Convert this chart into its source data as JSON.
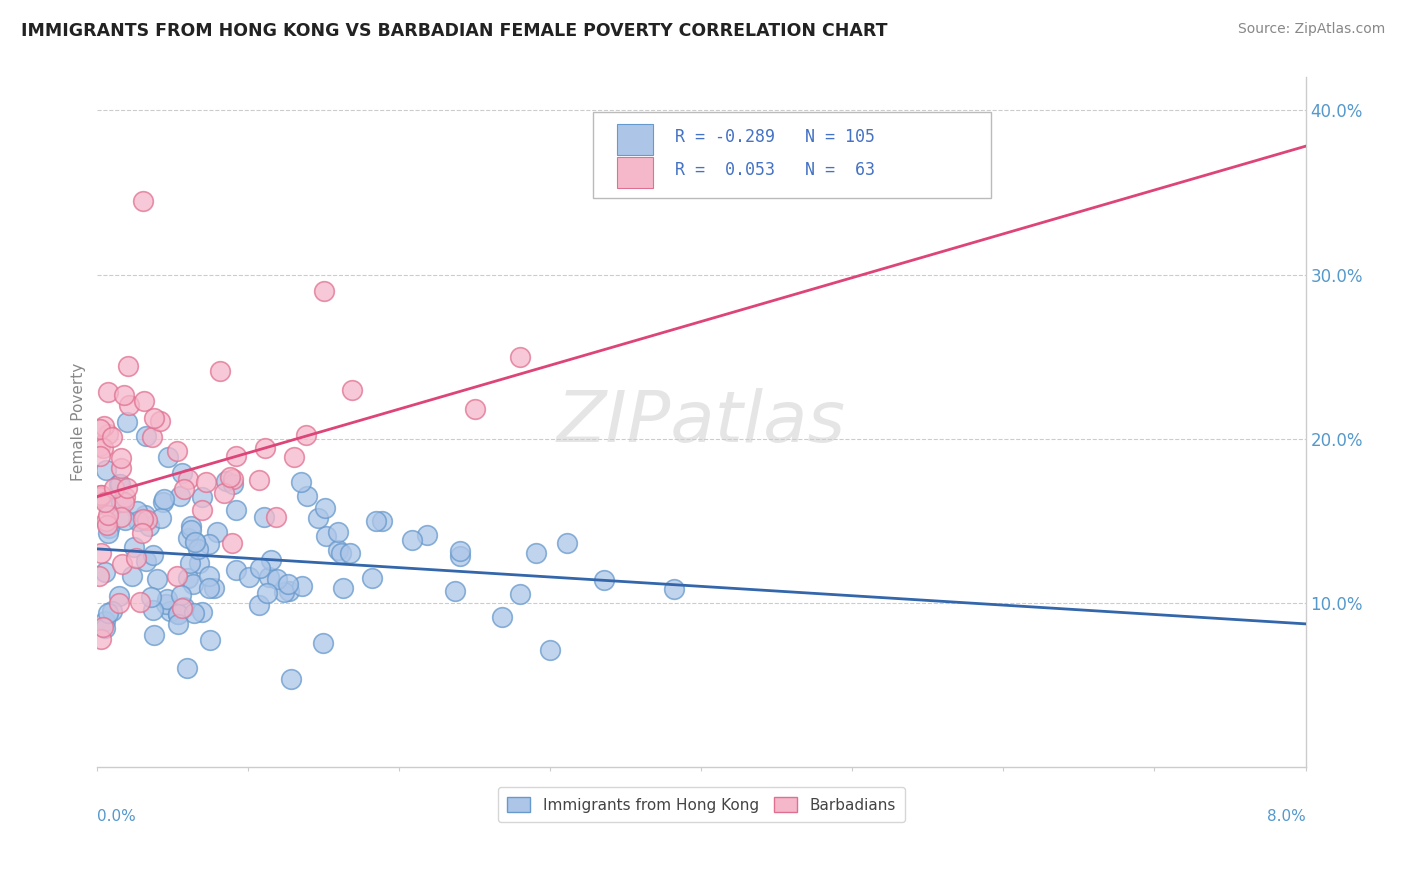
{
  "title": "IMMIGRANTS FROM HONG KONG VS BARBADIAN FEMALE POVERTY CORRELATION CHART",
  "source": "Source: ZipAtlas.com",
  "ylabel": "Female Poverty",
  "xlim": [
    0.0,
    0.08
  ],
  "ylim": [
    0.0,
    0.42
  ],
  "ytick_vals": [
    0.1,
    0.2,
    0.3,
    0.4
  ],
  "ytick_labels": [
    "10.0%",
    "20.0%",
    "30.0%",
    "40.0%"
  ],
  "blue_fill": "#adc6e8",
  "blue_edge": "#6699cc",
  "pink_fill": "#f5b8cb",
  "pink_edge": "#e07090",
  "blue_line_color": "#3366aa",
  "pink_line_color": "#dd4477",
  "title_color": "#222222",
  "source_color": "#888888",
  "legend_text_color": "#4472c4",
  "watermark_color": "#cccccc",
  "grid_color": "#cccccc",
  "axis_color": "#cccccc",
  "ylabel_color": "#888888",
  "yticklabel_color": "#5599cc"
}
